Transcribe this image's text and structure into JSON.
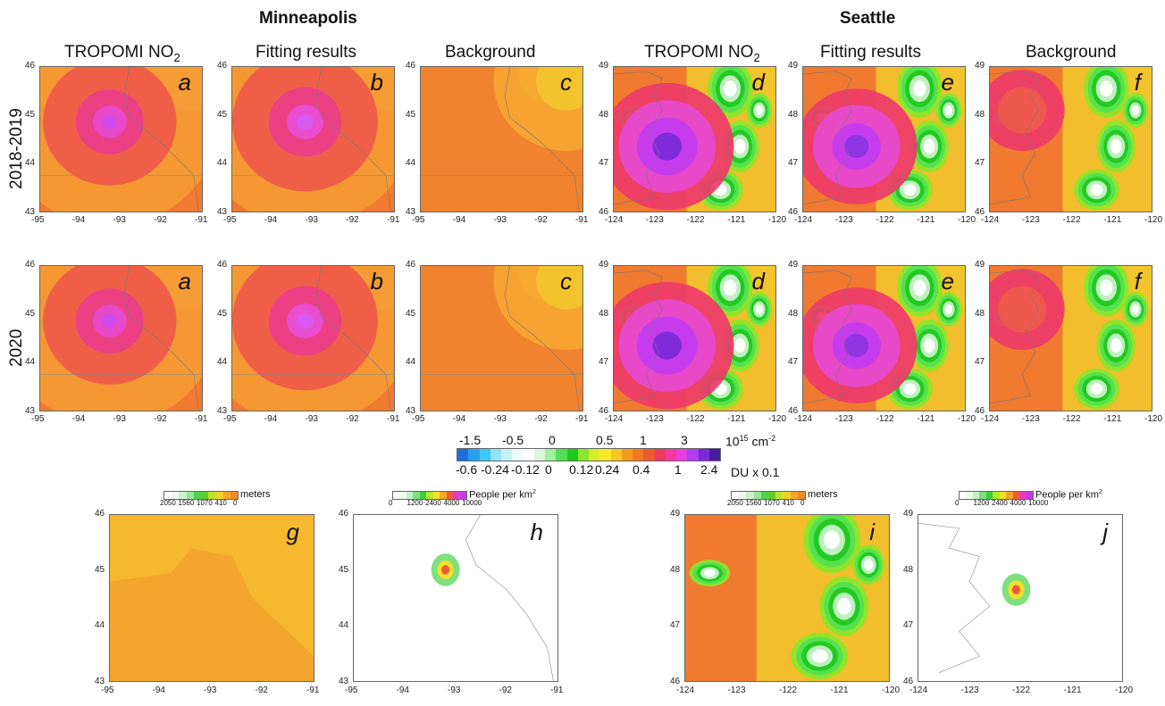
{
  "titles": {
    "minneapolis": "Minneapolis",
    "seattle": "Seattle"
  },
  "column_titles": {
    "tropomi": "TROPOMI NO",
    "tropomi_sub": "2",
    "fitting": "Fitting results",
    "background": "Background"
  },
  "row_labels": [
    "2018-2019",
    "2020"
  ],
  "panel_letters": [
    "a",
    "b",
    "c",
    "d",
    "e",
    "f",
    "g",
    "h",
    "i",
    "j"
  ],
  "minneapolis_axes": {
    "x_ticks": [
      "-95",
      "-94",
      "-93",
      "-92",
      "-91"
    ],
    "y_ticks": [
      "46",
      "45",
      "44",
      "43"
    ]
  },
  "seattle_axes": {
    "x_ticks": [
      "-124",
      "-123",
      "-122",
      "-121",
      "-120"
    ],
    "y_ticks": [
      "49",
      "48",
      "47",
      "46"
    ]
  },
  "colorbar": {
    "top_labels": [
      "-1.5",
      "-0.5",
      "0",
      "0.5",
      "1",
      "3"
    ],
    "top_unit": "10",
    "top_unit_sup": "15",
    "top_unit_suffix": " cm",
    "top_unit_sup2": "-2",
    "bottom_labels": [
      "-0.6",
      "-0.24",
      "-0.12",
      "0",
      "0.12",
      "0.24",
      "0.4",
      "1",
      "2.4"
    ],
    "bottom_unit": "DU x 0.1",
    "colors": [
      "#1c6fd8",
      "#2a9ff0",
      "#40c8f5",
      "#8fe3f5",
      "#c8f1f7",
      "#eefbfb",
      "#ffffff",
      "#d9f7d9",
      "#9ff09f",
      "#52e052",
      "#20c820",
      "#8ce62b",
      "#d4ee2a",
      "#fbe82b",
      "#f9c51f",
      "#f59a1a",
      "#f27a1e",
      "#ee5a30",
      "#ee3a60",
      "#f03aa0",
      "#e63ee0",
      "#b23cf0",
      "#7a2ad8",
      "#4b1aa0"
    ]
  },
  "elevation_legend": {
    "labels": [
      "2050",
      "1560",
      "1070",
      "410",
      "0"
    ],
    "unit": "meters",
    "colors": [
      "#ffffff",
      "#eef9ee",
      "#ccf0cc",
      "#99e699",
      "#4fd24f",
      "#5fd02a",
      "#bde32a",
      "#f2d22a",
      "#f4a92a",
      "#f08a2a"
    ]
  },
  "population_legend": {
    "labels": [
      "0",
      "1200",
      "2400",
      "4000",
      "10000"
    ],
    "unit": "People per km",
    "unit_sup": "2",
    "colors": [
      "#ffffff",
      "#eefaee",
      "#c8f0c8",
      "#7ee07e",
      "#3cce3c",
      "#b8e82a",
      "#f6e02a",
      "#f2a62a",
      "#ee5a3a",
      "#e63ac0",
      "#c23ce8"
    ]
  }
}
